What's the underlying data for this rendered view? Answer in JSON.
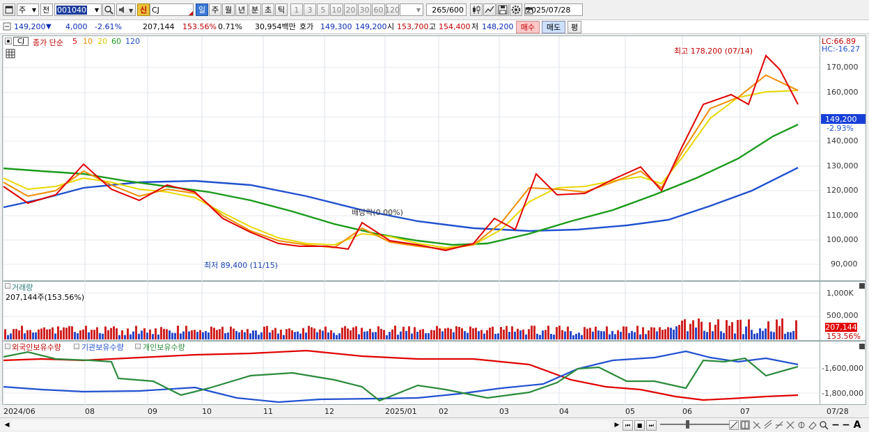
{
  "toolbar": {
    "market_select": "주",
    "prev_label": "전",
    "stock_code": "001040",
    "new_label": "신",
    "stock_name": "CJ",
    "period_tabs": [
      "일",
      "주",
      "월",
      "년",
      "분",
      "초",
      "틱"
    ],
    "interval_buttons": [
      "1",
      "3",
      "5",
      "10",
      "20",
      "30",
      "60",
      "120"
    ],
    "count_display": "265",
    "count_total": "/600",
    "date": "2025/07/28"
  },
  "quote": {
    "price": "149,200",
    "change_arrow": "▼",
    "change": "4,000",
    "change_pct": "-2.61%",
    "volume": "207,144",
    "volume_ratio": "153.56%",
    "turnover_pct": "0.71%",
    "amount": "30,954백만",
    "ask_label": "호가",
    "ask1": "149,300",
    "bid1": "149,200",
    "open_label": "시",
    "open": "153,700",
    "high_label": "고",
    "high": "154,400",
    "low_label": "저",
    "low": "148,200",
    "buy_button": "매수",
    "sell_button": "매도",
    "eval_button": "평"
  },
  "price_panel": {
    "stock_tag": "CJ",
    "legend_title": "종가 단순",
    "ma_labels": [
      "5",
      "10",
      "20",
      "60",
      "120"
    ],
    "ma_colors": [
      "#e00000",
      "#f08c00",
      "#e8d800",
      "#1a9a1a",
      "#2050d0"
    ],
    "lc_label": "LC:66.89",
    "hc_label": "HC:-16.27",
    "y_labels": [
      "170,000",
      "160,000",
      "150,000",
      "140,000",
      "130,000",
      "120,000",
      "110,000",
      "100,000",
      "90,000"
    ],
    "current_price": "149,200",
    "current_change": "-2.93%",
    "high_annotation": "최고 178,200 (07/14)",
    "low_annotation": "최저 89,400 (11/15)",
    "dividend_annotation": "배당락(0.00%)"
  },
  "volume_panel": {
    "title": "거래량",
    "subtitle": "207,144주(153.56%)",
    "y_labels": [
      "1,000K",
      "500,000"
    ],
    "current_volume": "207,144",
    "current_ratio": "153.56%"
  },
  "holdings_panel": {
    "series_labels": [
      "외국인보유수량",
      "기관보유수량",
      "개인보유수량"
    ],
    "series_colors": [
      "#e00000",
      "#2050d0",
      "#2a8a3a"
    ],
    "y_labels": [
      "-1,600,000",
      "-1,800,000"
    ]
  },
  "x_axis": {
    "labels": [
      "2024/06",
      "08",
      "09",
      "10",
      "11",
      "12",
      "2025/01",
      "02",
      "03",
      "04",
      "05",
      "06",
      "07"
    ],
    "right_label": "07/28"
  }
}
